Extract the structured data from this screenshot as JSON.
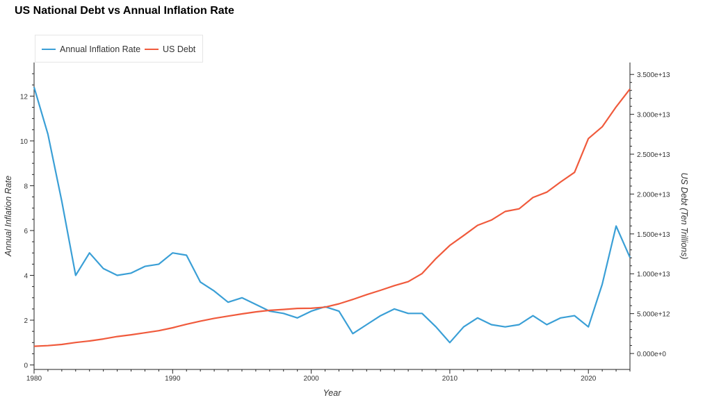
{
  "title": "US National Debt vs Annual Inflation Rate",
  "colors": {
    "inflation": "#3a9fd6",
    "debt": "#f05a3c",
    "axis": "#222222"
  },
  "chart_data": {
    "type": "line",
    "title": "US National Debt vs Annual Inflation Rate",
    "xlabel": "Year",
    "ylabel": "Annual Inflation Rate",
    "y2label": "US Debt (Ten Trillions)",
    "xlim": [
      1980,
      2023
    ],
    "ylim": [
      -0.2,
      13.5
    ],
    "y2lim": [
      -2000000000000.0,
      36500000000000.0
    ],
    "x_ticks": [
      "1980",
      "1990",
      "2000",
      "2010",
      "2020"
    ],
    "y_ticks": [
      "0",
      "2",
      "4",
      "6",
      "8",
      "10",
      "12"
    ],
    "y2_ticks": [
      "0.000e+0",
      "5.000e+12",
      "1.000e+13",
      "1.500e+13",
      "2.000e+13",
      "2.500e+13",
      "3.000e+13",
      "3.500e+13"
    ],
    "legend_position": "top-left",
    "grid": false,
    "x": [
      1980,
      1981,
      1982,
      1983,
      1984,
      1985,
      1986,
      1987,
      1988,
      1989,
      1990,
      1991,
      1992,
      1993,
      1994,
      1995,
      1996,
      1997,
      1998,
      1999,
      2000,
      2001,
      2002,
      2003,
      2004,
      2005,
      2006,
      2007,
      2008,
      2009,
      2010,
      2011,
      2012,
      2013,
      2014,
      2015,
      2016,
      2017,
      2018,
      2019,
      2020,
      2021,
      2022,
      2023
    ],
    "series": [
      {
        "name": "Annual Inflation Rate",
        "axis": "left",
        "values": [
          12.4,
          10.3,
          7.3,
          4.0,
          5.0,
          4.3,
          4.0,
          4.1,
          4.4,
          4.5,
          5.0,
          4.9,
          3.7,
          3.3,
          2.8,
          3.0,
          2.7,
          2.4,
          2.3,
          2.1,
          2.4,
          2.6,
          2.4,
          1.4,
          1.8,
          2.2,
          2.5,
          2.3,
          2.3,
          1.7,
          1.0,
          1.7,
          2.1,
          1.8,
          1.7,
          1.8,
          2.2,
          1.8,
          2.1,
          2.2,
          1.7,
          3.6,
          6.2,
          4.8
        ]
      },
      {
        "name": "US Debt",
        "axis": "right",
        "values": [
          910000000000.0,
          990000000000.0,
          1140000000000.0,
          1380000000000.0,
          1570000000000.0,
          1820000000000.0,
          2130000000000.0,
          2350000000000.0,
          2600000000000.0,
          2860000000000.0,
          3230000000000.0,
          3670000000000.0,
          4060000000000.0,
          4410000000000.0,
          4690000000000.0,
          4970000000000.0,
          5220000000000.0,
          5410000000000.0,
          5530000000000.0,
          5660000000000.0,
          5670000000000.0,
          5810000000000.0,
          6230000000000.0,
          6780000000000.0,
          7380000000000.0,
          7930000000000.0,
          8510000000000.0,
          9010000000000.0,
          10030000000000.0,
          11910000000000.0,
          13560000000000.0,
          14790000000000.0,
          16070000000000.0,
          16740000000000.0,
          17820000000000.0,
          18150000000000.0,
          19570000000000.0,
          20240000000000.0,
          21520000000000.0,
          22720000000000.0,
          26950000000000.0,
          28430000000000.0,
          30930000000000.0,
          33170000000000.0
        ]
      }
    ]
  }
}
